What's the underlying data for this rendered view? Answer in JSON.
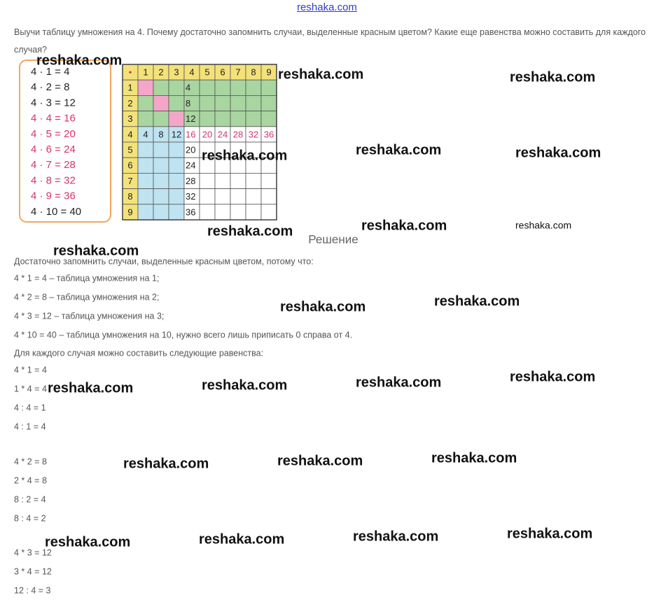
{
  "header": {
    "site": "reshaka.com"
  },
  "task": {
    "text": "Выучи таблицу умножения на 4. Почему достаточно запомнить случаи, выделенные красным цветом? Какие еще равенства можно составить для каждого случая?"
  },
  "figure": {
    "list": [
      {
        "text": "4 · 1 = 4",
        "color": "#222222"
      },
      {
        "text": "4 · 2 = 8",
        "color": "#222222"
      },
      {
        "text": "4 · 3 = 12",
        "color": "#222222"
      },
      {
        "text": "4 · 4 = 16",
        "color": "#d6336c"
      },
      {
        "text": "4 · 5 = 20",
        "color": "#d6336c"
      },
      {
        "text": "4 · 6 = 24",
        "color": "#d6336c"
      },
      {
        "text": "4 · 7 = 28",
        "color": "#d6336c"
      },
      {
        "text": "4 · 8 = 32",
        "color": "#d6336c"
      },
      {
        "text": "4 · 9 = 36",
        "color": "#d6336c"
      },
      {
        "text": "4 · 10 = 40",
        "color": "#222222"
      }
    ],
    "table": {
      "header": [
        "•",
        1,
        2,
        3,
        4,
        5,
        6,
        7,
        8,
        9
      ],
      "rows": [
        [
          1,
          null,
          null,
          null,
          4,
          null,
          null,
          null,
          null,
          null
        ],
        [
          2,
          null,
          null,
          null,
          8,
          null,
          null,
          null,
          null,
          null
        ],
        [
          3,
          null,
          null,
          null,
          12,
          null,
          null,
          null,
          null,
          null
        ],
        [
          4,
          4,
          8,
          12,
          16,
          20,
          24,
          28,
          32,
          36
        ],
        [
          5,
          null,
          null,
          null,
          20,
          null,
          null,
          null,
          null,
          null
        ],
        [
          6,
          null,
          null,
          null,
          24,
          null,
          null,
          null,
          null,
          null
        ],
        [
          7,
          null,
          null,
          null,
          28,
          null,
          null,
          null,
          null,
          null
        ],
        [
          8,
          null,
          null,
          null,
          32,
          null,
          null,
          null,
          null,
          null
        ],
        [
          9,
          null,
          null,
          null,
          36,
          null,
          null,
          null,
          null,
          null
        ]
      ]
    }
  },
  "solution": {
    "title": "Решение",
    "lines": [
      "Достаточно запомнить случаи, выделенные красным цветом, потому что:",
      "4 * 1 = 4 – таблица умножения на 1;",
      "4 * 2 = 8 – таблица умножения на 2;",
      "4 * 3 = 12 – таблица умножения на 3;",
      "4 * 10 = 40 – таблица умножения на 10, нужно всего лишь приписать 0 справа от 4.",
      "Для каждого случая можно составить следующие равенства:"
    ],
    "groups": [
      [
        "4 * 1 = 4",
        "1 * 4 = 4",
        "4 : 4 = 1",
        "4 : 1 = 4"
      ],
      [
        "4 * 2 = 8",
        "2 * 4 = 8",
        "8 : 2 = 4",
        "8 : 4 = 2"
      ],
      [
        "4 * 3 = 12",
        "3 * 4 = 12",
        "12 : 4 = 3"
      ]
    ]
  },
  "watermarks": [
    "reshaka.com",
    "reshaka.com",
    "reshaka.com",
    "reshaka.com",
    "reshaka.com",
    "reshaka.com",
    "reshaka.com",
    "reshaka.com",
    "reshaka.com",
    "reshaka.com",
    "reshaka.com",
    "reshaka.com",
    "reshaka.com",
    "reshaka.com",
    "reshaka.com",
    "reshaka.com",
    "reshaka.com",
    "reshaka.com",
    "reshaka.com",
    "reshaka.com",
    "reshaka.com",
    "reshaka.com",
    "reshaka.com"
  ]
}
